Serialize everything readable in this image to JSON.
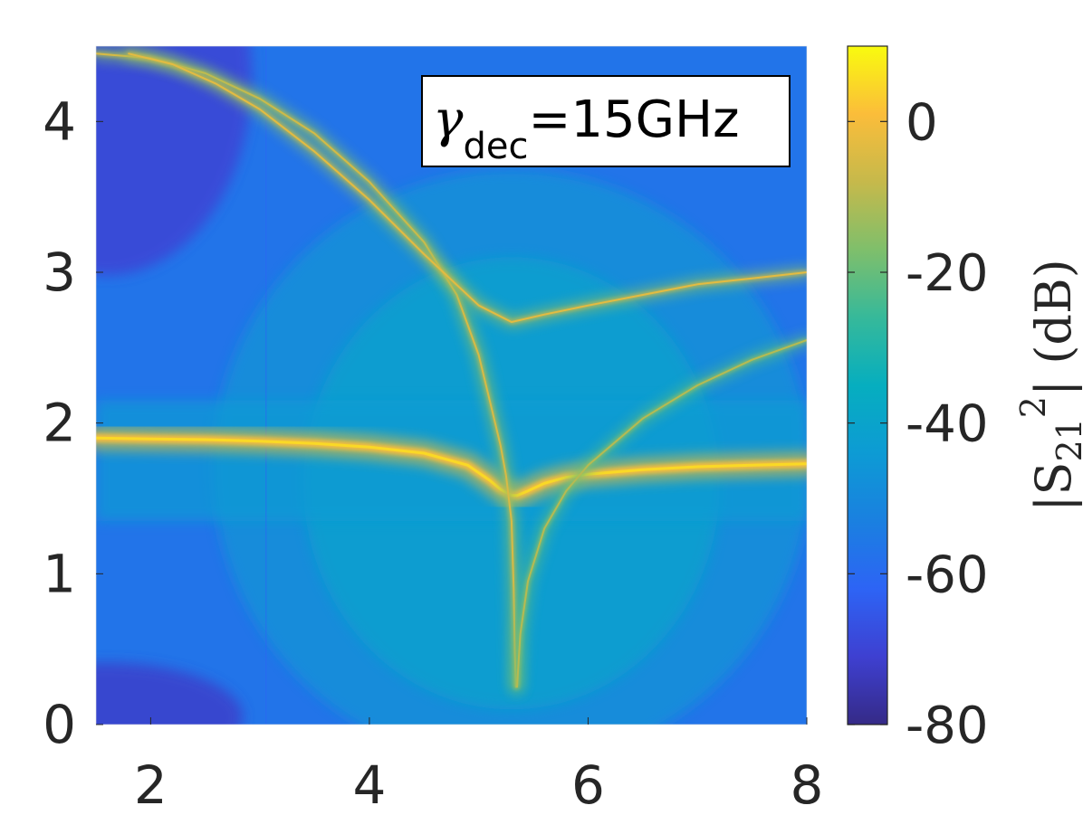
{
  "chart_data": {
    "type": "heatmap",
    "title": "",
    "xlabel": "",
    "ylabel": "",
    "xlim": [
      1.5,
      8
    ],
    "ylim": [
      0,
      4.5
    ],
    "x_ticks": [
      {
        "value": 2,
        "label": "2"
      },
      {
        "value": 4,
        "label": "4"
      },
      {
        "value": 6,
        "label": "6"
      },
      {
        "value": 8,
        "label": "8"
      }
    ],
    "y_ticks": [
      {
        "value": 0,
        "label": "0"
      },
      {
        "value": 1,
        "label": "1"
      },
      {
        "value": 2,
        "label": "2"
      },
      {
        "value": 3,
        "label": "3"
      },
      {
        "value": 4,
        "label": "4"
      }
    ],
    "colorbar": {
      "label_prefix": "|S",
      "label_sub": "21",
      "label_sup": "2",
      "label_suffix": "| (dB)",
      "range": [
        -80,
        10
      ],
      "colormap": "parula",
      "ticks": [
        {
          "value": 0,
          "label": "0"
        },
        {
          "value": -20,
          "label": "-20"
        },
        {
          "value": -40,
          "label": "-40"
        },
        {
          "value": -60,
          "label": "-60"
        },
        {
          "value": -80,
          "label": "-80"
        }
      ]
    },
    "annotation": {
      "symbol": "γ",
      "sub": "dec",
      "rest": "=15GHz"
    },
    "curves": [
      {
        "name": "",
        "peak_db": 5,
        "points": [
          [
            1.5,
            1.9
          ],
          [
            2.0,
            1.895
          ],
          [
            2.5,
            1.89
          ],
          [
            3.0,
            1.88
          ],
          [
            3.5,
            1.865
          ],
          [
            4.0,
            1.84
          ],
          [
            4.5,
            1.8
          ],
          [
            4.9,
            1.72
          ],
          [
            5.1,
            1.62
          ],
          [
            5.2,
            1.56
          ],
          [
            5.3,
            1.52
          ],
          [
            5.35,
            1.52
          ],
          [
            5.45,
            1.55
          ],
          [
            5.6,
            1.6
          ],
          [
            5.8,
            1.64
          ],
          [
            6.0,
            1.66
          ],
          [
            6.5,
            1.69
          ],
          [
            7.0,
            1.71
          ],
          [
            7.5,
            1.72
          ],
          [
            8.0,
            1.73
          ]
        ]
      },
      {
        "name": "",
        "peak_db": -5,
        "points": [
          [
            1.5,
            4.45
          ],
          [
            2.0,
            4.42
          ],
          [
            2.5,
            4.32
          ],
          [
            3.0,
            4.15
          ],
          [
            3.5,
            3.92
          ],
          [
            4.0,
            3.6
          ],
          [
            4.5,
            3.2
          ],
          [
            4.8,
            2.85
          ],
          [
            5.0,
            2.45
          ],
          [
            5.1,
            2.15
          ],
          [
            5.2,
            1.85
          ],
          [
            5.25,
            1.65
          ],
          [
            5.3,
            1.35
          ],
          [
            5.32,
            0.9
          ],
          [
            5.33,
            0.5
          ],
          [
            5.34,
            0.25
          ]
        ]
      },
      {
        "name": "",
        "peak_db": -10,
        "points": [
          [
            5.35,
            0.25
          ],
          [
            5.38,
            0.6
          ],
          [
            5.45,
            0.95
          ],
          [
            5.6,
            1.3
          ],
          [
            5.8,
            1.55
          ],
          [
            6.0,
            1.72
          ],
          [
            6.5,
            2.03
          ],
          [
            7.0,
            2.25
          ],
          [
            7.5,
            2.42
          ],
          [
            8.0,
            2.55
          ]
        ]
      },
      {
        "name": "",
        "peak_db": -3,
        "points": [
          [
            1.8,
            4.45
          ],
          [
            2.2,
            4.38
          ],
          [
            2.6,
            4.25
          ],
          [
            3.0,
            4.08
          ],
          [
            3.5,
            3.8
          ],
          [
            4.0,
            3.48
          ],
          [
            4.5,
            3.12
          ],
          [
            5.0,
            2.78
          ],
          [
            5.3,
            2.67
          ],
          [
            5.6,
            2.72
          ],
          [
            6.0,
            2.78
          ],
          [
            6.5,
            2.85
          ],
          [
            7.0,
            2.92
          ],
          [
            7.5,
            2.96
          ],
          [
            8.0,
            3.0
          ]
        ]
      }
    ]
  }
}
